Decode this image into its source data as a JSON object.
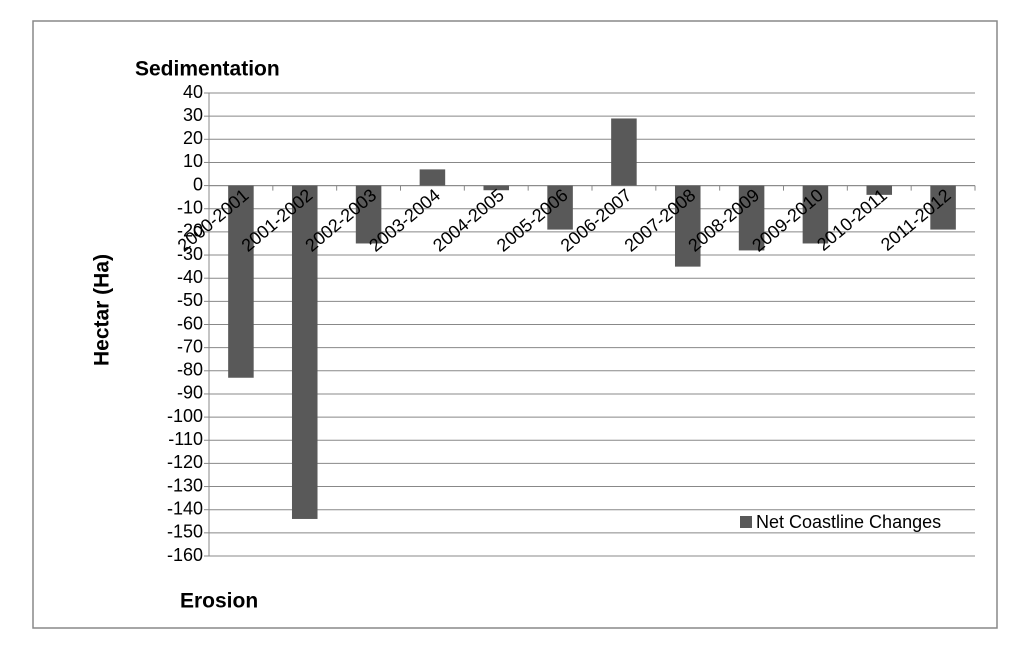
{
  "chart_data": {
    "type": "bar",
    "title": "Sedimentation",
    "bottom_label": "Erosion",
    "y_label": "Hectar (Ha)",
    "categories": [
      "2000-2001",
      "2001-2002",
      "2002-2003",
      "2003-2004",
      "2004-2005",
      "2005-2006",
      "2006-2007",
      "2007-2008",
      "2008-2009",
      "2009-2010",
      "2010-2011",
      "2011-2012"
    ],
    "series": [
      {
        "name": "Net Coastline Changes",
        "color": "#595959",
        "values": [
          -83,
          -144,
          -25,
          7,
          -2,
          -19,
          29,
          -35,
          -28,
          -25,
          -4,
          -19
        ]
      }
    ],
    "ylim": [
      -160,
      40
    ],
    "yticks": [
      -160,
      -150,
      -140,
      -130,
      -120,
      -110,
      -100,
      -90,
      -80,
      -70,
      -60,
      -50,
      -40,
      -30,
      -20,
      -10,
      0,
      10,
      20,
      30,
      40
    ],
    "grid": true,
    "legend": "bottom-right"
  }
}
